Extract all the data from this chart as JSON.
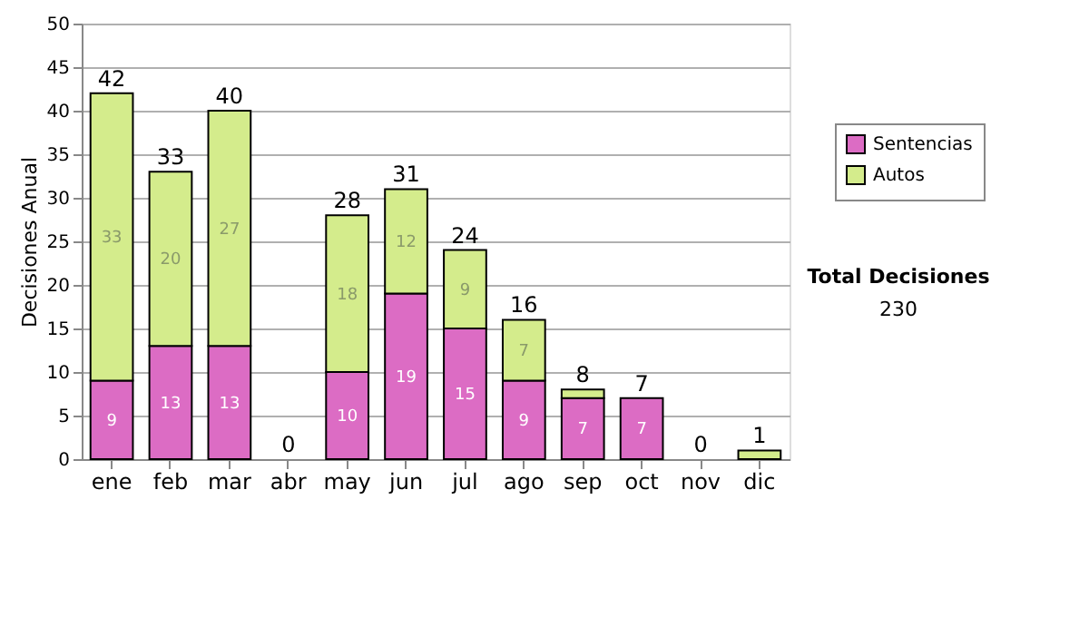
{
  "chart_data": {
    "type": "bar",
    "stacked": true,
    "ylabel": "Decisiones Anual",
    "categories": [
      "ene",
      "feb",
      "mar",
      "abr",
      "may",
      "jun",
      "jul",
      "ago",
      "sep",
      "oct",
      "nov",
      "dic"
    ],
    "series": [
      {
        "name": "Sentencias",
        "color": "#dc6cc4",
        "values": [
          9,
          13,
          13,
          0,
          10,
          19,
          15,
          9,
          7,
          7,
          0,
          0
        ],
        "value_labels": [
          "9",
          "13",
          "13",
          null,
          "10",
          "19",
          "15",
          "9",
          "7",
          "7",
          null,
          null
        ]
      },
      {
        "name": "Autos",
        "color": "#d4ec8c",
        "values": [
          33,
          20,
          27,
          0,
          18,
          12,
          9,
          7,
          1,
          0,
          0,
          1
        ],
        "value_labels": [
          "33",
          "20",
          "27",
          null,
          "18",
          "12",
          "9",
          "7",
          null,
          null,
          null,
          null
        ]
      }
    ],
    "totals": [
      "42",
      "33",
      "40",
      "0",
      "28",
      "31",
      "24",
      "16",
      "8",
      "7",
      "0",
      "1"
    ],
    "ylim": [
      0,
      50
    ],
    "yticks": [
      0,
      5,
      10,
      15,
      20,
      25,
      30,
      35,
      40,
      45,
      50
    ],
    "grid": "y",
    "legend": "right",
    "annotations": [
      "Total Decisiones",
      "230"
    ]
  }
}
